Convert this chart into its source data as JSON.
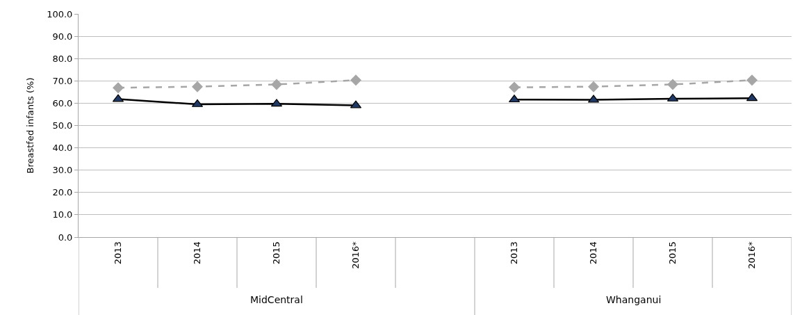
{
  "chart_data": {
    "type": "line",
    "ylabel": "Breastfed infants (%)",
    "categories": [
      "2013",
      "2014",
      "2015",
      "2016*",
      null,
      "2013",
      "2014",
      "2015",
      "2016*"
    ],
    "annotations": [
      "MidCentral",
      "Whanganui"
    ],
    "ylim": [
      0,
      100
    ],
    "yticks": [
      {
        "value": 0,
        "label": "0.0"
      },
      {
        "value": 10,
        "label": "10.0"
      },
      {
        "value": 20,
        "label": "20.0"
      },
      {
        "value": 30,
        "label": "30.0"
      },
      {
        "value": 40,
        "label": "40.0"
      },
      {
        "value": 50,
        "label": "50.0"
      },
      {
        "value": 60,
        "label": "60.0"
      },
      {
        "value": 70,
        "label": "70.0"
      },
      {
        "value": 80,
        "label": "80.0"
      },
      {
        "value": 90,
        "label": "90.0"
      },
      {
        "value": 100,
        "label": "100.0"
      }
    ],
    "grid": "y",
    "series": [
      {
        "color": "#a6a6a6",
        "marker": "diamond",
        "line_style": "dashed",
        "values": [
          66.9,
          67.4,
          68.4,
          70.3,
          null,
          67.1,
          67.4,
          68.4,
          70.3
        ]
      },
      {
        "color": "#1f3864",
        "marker": "triangle",
        "line_style": "solid",
        "values": [
          61.8,
          59.5,
          59.7,
          59.0,
          null,
          61.6,
          61.5,
          62.0,
          62.2
        ]
      }
    ]
  }
}
